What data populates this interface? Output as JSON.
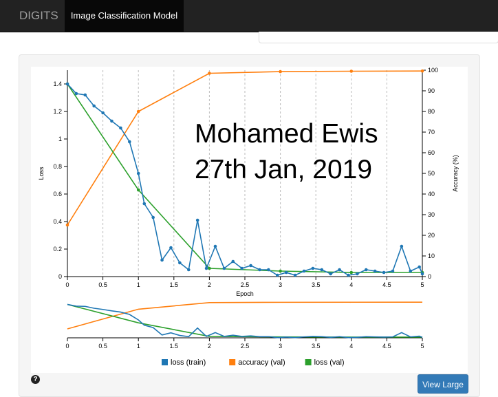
{
  "navbar": {
    "brand": "DIGITS",
    "active_tab": "Image Classification Model"
  },
  "button": {
    "view_large": "View Large"
  },
  "help": {
    "icon": "question-circle-icon",
    "glyph": "?"
  },
  "colors": {
    "loss_train": "#1f77b4",
    "accuracy_val": "#ff7f0e",
    "loss_val": "#2ca02c"
  },
  "overlay_text": {
    "line1": "Mohamed Ewis",
    "line2": "27th Jan, 2019"
  },
  "chart_data": {
    "type": "line",
    "xlabel": "Epoch",
    "ylabel": "Loss",
    "y2label": "Accuracy (%)",
    "xlim": [
      0,
      5
    ],
    "ylim": [
      0,
      1.5
    ],
    "y2lim": [
      0,
      100
    ],
    "x_ticks": [
      "0",
      "0.5",
      "1",
      "1.5",
      "2",
      "2.5",
      "3",
      "3.5",
      "4",
      "4.5",
      "5"
    ],
    "y_ticks": [
      "0",
      "0.2",
      "0.4",
      "0.6",
      "0.8",
      "1",
      "1.2",
      "1.4"
    ],
    "y2_ticks": [
      "0",
      "10",
      "20",
      "30",
      "40",
      "50",
      "60",
      "70",
      "80",
      "90",
      "100"
    ],
    "grid": "vertical dashed lines at x ticks",
    "legend_position": "bottom",
    "series": [
      {
        "name": "loss (train)",
        "axis": "left",
        "color": "#1f77b4",
        "x": [
          0,
          0.125,
          0.25,
          0.375,
          0.5,
          0.625,
          0.75,
          0.875,
          1,
          1.083,
          1.208,
          1.333,
          1.458,
          1.583,
          1.708,
          1.833,
          1.958,
          2.083,
          2.208,
          2.333,
          2.458,
          2.583,
          2.708,
          2.833,
          2.958,
          3.083,
          3.208,
          3.333,
          3.458,
          3.583,
          3.708,
          3.833,
          3.958,
          4.083,
          4.208,
          4.333,
          4.458,
          4.583,
          4.708,
          4.833,
          4.958,
          5
        ],
        "values": [
          1.4,
          1.33,
          1.32,
          1.24,
          1.19,
          1.13,
          1.08,
          0.98,
          0.75,
          0.53,
          0.43,
          0.12,
          0.21,
          0.1,
          0.05,
          0.41,
          0.06,
          0.22,
          0.06,
          0.11,
          0.06,
          0.08,
          0.05,
          0.05,
          0.01,
          0.03,
          0.01,
          0.04,
          0.06,
          0.05,
          0.02,
          0.05,
          0.01,
          0.02,
          0.05,
          0.04,
          0.03,
          0.04,
          0.22,
          0.04,
          0.07,
          0.02
        ]
      },
      {
        "name": "accuracy (val)",
        "axis": "right",
        "color": "#ff7f0e",
        "x": [
          0,
          1,
          2,
          3,
          4,
          5
        ],
        "values": [
          25,
          80,
          98.5,
          99.3,
          99.5,
          99.6
        ]
      },
      {
        "name": "loss (val)",
        "axis": "left",
        "color": "#2ca02c",
        "x": [
          0,
          1,
          2,
          3,
          4,
          5
        ],
        "values": [
          1.4,
          0.63,
          0.06,
          0.04,
          0.03,
          0.03
        ]
      }
    ],
    "navigator": {
      "x_ticks": [
        "0",
        "0.5",
        "1",
        "1.5",
        "2",
        "2.5",
        "3",
        "3.5",
        "4",
        "4.5",
        "5"
      ]
    }
  }
}
